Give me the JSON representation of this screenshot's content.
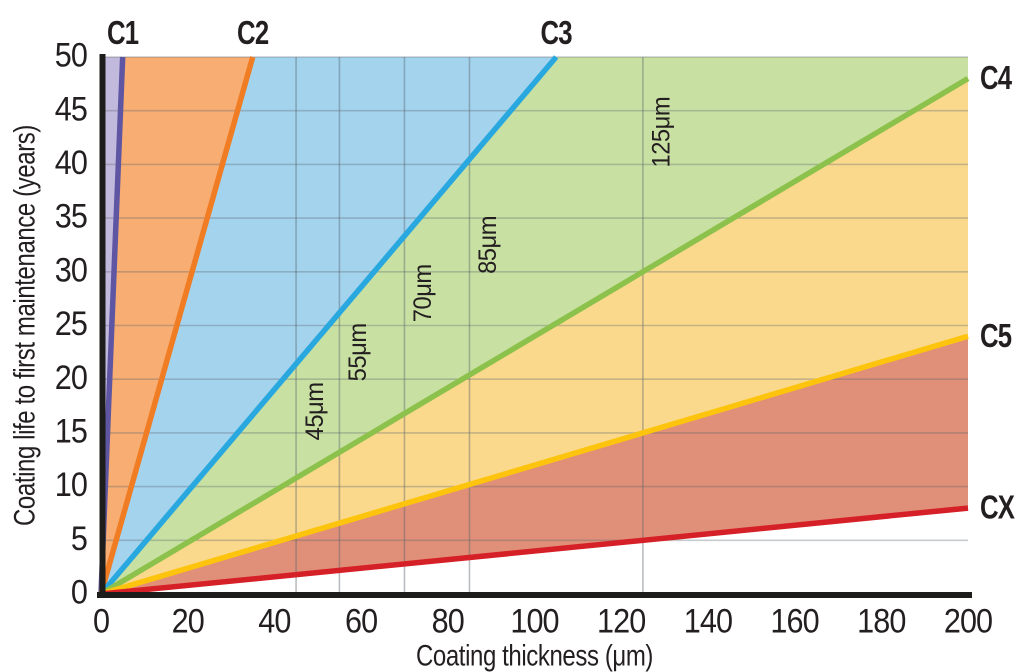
{
  "chart_data": {
    "type": "area",
    "title": "",
    "xlabel": "Coating thickness (μm)",
    "ylabel": "Coating life to first maintenance (years)",
    "xlim": [
      0,
      200
    ],
    "ylim": [
      0,
      50
    ],
    "x_ticks": [
      0,
      20,
      40,
      60,
      80,
      100,
      120,
      140,
      160,
      180,
      200
    ],
    "y_ticks": [
      0,
      5,
      10,
      15,
      20,
      25,
      30,
      35,
      40,
      45,
      50
    ],
    "grid": "on",
    "axis_color": "#1d1d1b",
    "grid_color": "#5a646e",
    "text_color": "#231f20",
    "series": [
      {
        "name": "C1",
        "label_side": "top",
        "line_from": [
          0,
          0
        ],
        "line_to": [
          5,
          50
        ],
        "line_color": "#5e56a2",
        "fill_color": "#c2badc",
        "zone": [
          [
            0,
            0
          ],
          [
            5,
            50
          ],
          [
            0,
            50
          ]
        ]
      },
      {
        "name": "C2",
        "label_side": "top",
        "line_from": [
          0,
          0
        ],
        "line_to": [
          35,
          50
        ],
        "line_color": "#f07c23",
        "fill_color": "#f8ad72",
        "zone": [
          [
            0,
            0
          ],
          [
            35,
            50
          ],
          [
            5,
            50
          ]
        ]
      },
      {
        "name": "C3",
        "label_side": "top",
        "line_from": [
          0,
          0
        ],
        "line_to": [
          105,
          50
        ],
        "line_color": "#29a8e0",
        "fill_color": "#a4d3ee",
        "zone": [
          [
            0,
            0
          ],
          [
            105,
            50
          ],
          [
            35,
            50
          ]
        ]
      },
      {
        "name": "C4",
        "label_side": "right",
        "line_from": [
          0,
          0
        ],
        "line_to": [
          200,
          48
        ],
        "line_color": "#8cc14c",
        "fill_color": "#c8e1a2",
        "zone": [
          [
            0,
            0
          ],
          [
            200,
            48
          ],
          [
            200,
            50
          ],
          [
            105,
            50
          ]
        ]
      },
      {
        "name": "C5",
        "label_side": "right",
        "line_from": [
          0,
          0
        ],
        "line_to": [
          200,
          24
        ],
        "line_color": "#fdc40d",
        "fill_color": "#fbd98c",
        "zone": [
          [
            0,
            0
          ],
          [
            200,
            24
          ],
          [
            200,
            48
          ]
        ]
      },
      {
        "name": "CX",
        "label_side": "right",
        "line_from": [
          0,
          0
        ],
        "line_to": [
          200,
          8
        ],
        "line_color": "#d62027",
        "fill_color": "#e09078",
        "zone": [
          [
            0,
            0
          ],
          [
            200,
            8
          ],
          [
            200,
            24
          ]
        ]
      }
    ],
    "thickness_markers": [
      {
        "value": 45,
        "label": "45μm",
        "label_center_years": 17
      },
      {
        "value": 55,
        "label": "55μm",
        "label_center_years": 22.5
      },
      {
        "value": 70,
        "label": "70μm",
        "label_center_years": 28
      },
      {
        "value": 85,
        "label": "85μm",
        "label_center_years": 32.5
      },
      {
        "value": 125,
        "label": "125μm",
        "label_center_years": 43
      }
    ]
  }
}
